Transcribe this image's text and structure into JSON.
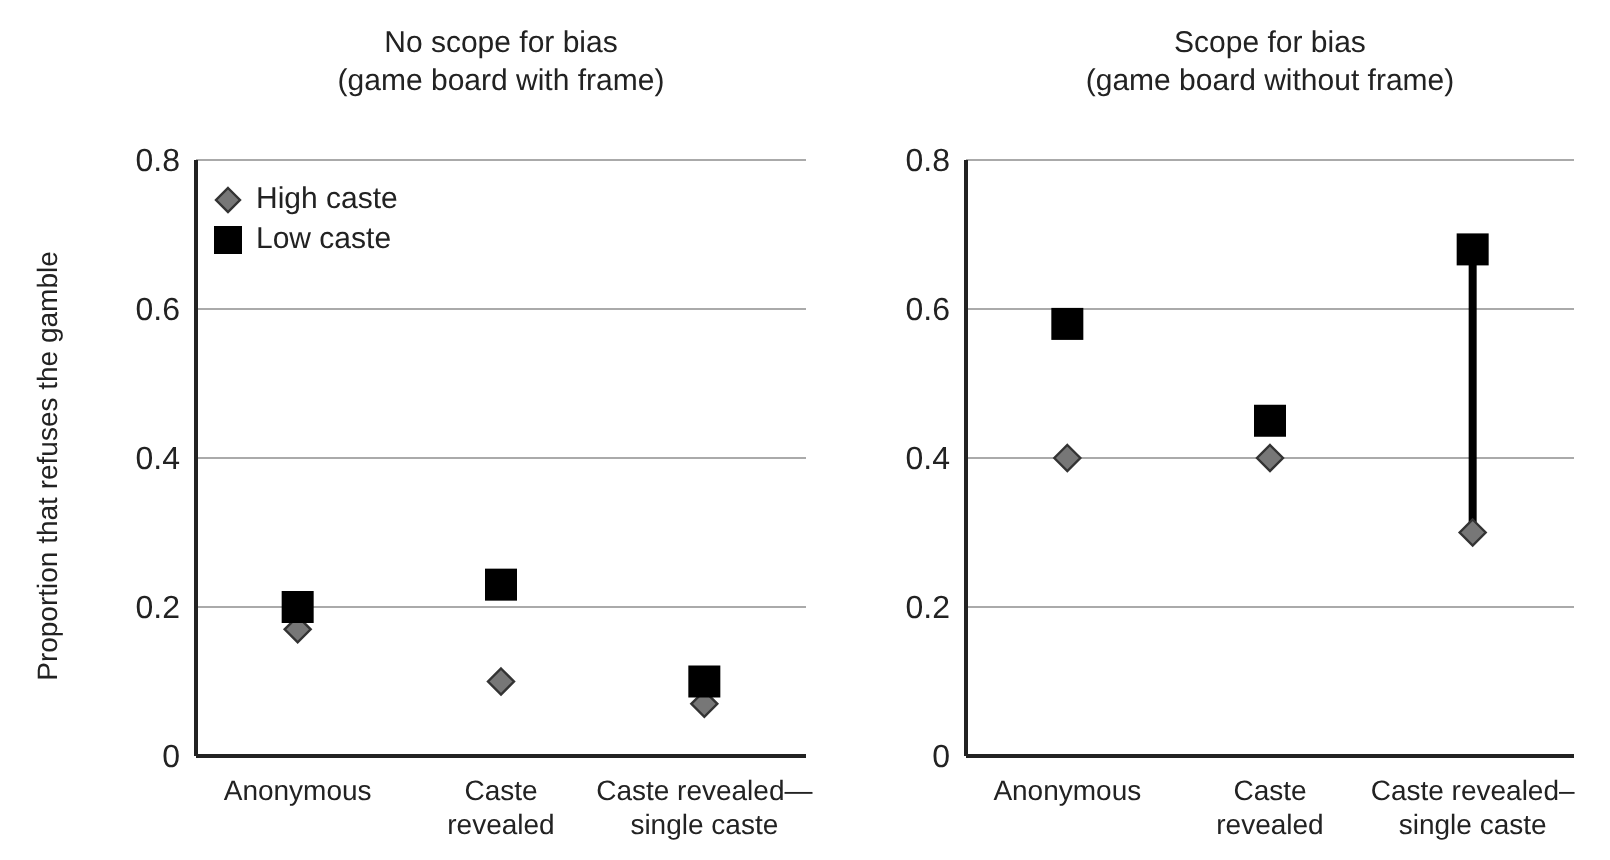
{
  "chart_data": [
    {
      "type": "scatter",
      "title": "No scope for bias\n(game board with frame)",
      "ylabel": "Proportion that refuses the gamble",
      "categories": [
        "Anonymous",
        "Caste\nrevealed",
        "Caste revealed—\nsingle caste"
      ],
      "series": [
        {
          "name": "High caste",
          "color": "#777777",
          "marker": "diamond",
          "values": [
            0.17,
            0.1,
            0.07
          ]
        },
        {
          "name": "Low caste",
          "color": "#000000",
          "marker": "square",
          "values": [
            0.2,
            0.23,
            0.1
          ]
        }
      ],
      "ylim": [
        0,
        0.8
      ],
      "yticks": [
        0,
        0.2,
        0.4,
        0.6,
        0.8
      ],
      "grid": "y",
      "legend": "top left"
    },
    {
      "type": "scatter",
      "title": "Scope for bias\n(game board without frame)",
      "categories": [
        "Anonymous",
        "Caste\nrevealed",
        "Caste revealed–\nsingle caste"
      ],
      "series": [
        {
          "color": "#777777",
          "marker": "diamond",
          "values": [
            0.4,
            0.4,
            0.3
          ]
        },
        {
          "color": "#000000",
          "marker": "square",
          "values": [
            0.58,
            0.45,
            0.68
          ]
        },
        {
          "type": "line",
          "color": "#000000",
          "marker": "none",
          "x": [
            "Caste revealed–\nsingle caste",
            "Caste revealed–\nsingle caste"
          ],
          "values": [
            0.3,
            0.68
          ]
        }
      ],
      "ylim": [
        0,
        0.8
      ],
      "yticks": [
        0,
        0.2,
        0.4,
        0.6,
        0.8
      ],
      "grid": "y",
      "legend": false
    }
  ]
}
